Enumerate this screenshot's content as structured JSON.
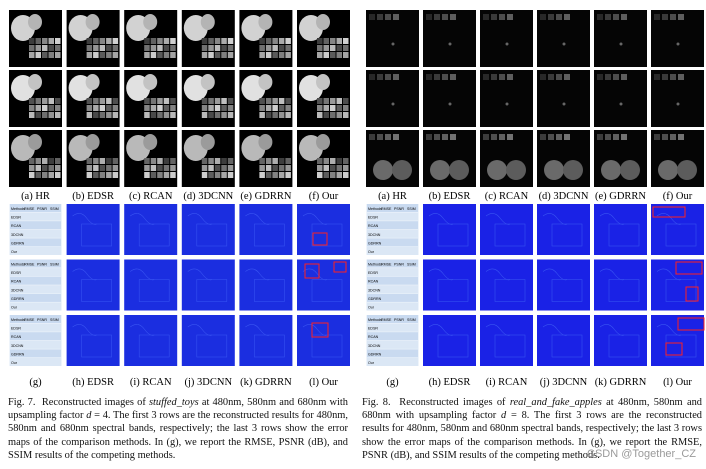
{
  "figures": [
    {
      "top_labels": [
        "(a) HR",
        "(b) EDSR",
        "(c) RCAN",
        "(d) 3DCNN",
        "(e) GDRRN",
        "(f) Our"
      ],
      "bottom_labels": [
        "(g)",
        "(h) EDSR",
        "(i) RCAN",
        "(j) 3DCNN",
        "(k) GDRRN",
        "(l) Our"
      ],
      "table": {
        "header": [
          "Methods",
          "RMSE",
          "PSNR",
          "SSIM"
        ],
        "methods": [
          "EDSR",
          "RCAN",
          "3DCNN",
          "GDRRN",
          "Our"
        ]
      },
      "caption": {
        "label": "Fig. 7.",
        "before": "Reconstructed images of",
        "dataset": "stuffed_toys",
        "middle": "at 480nm, 580nm and 680nm with upsampling factor",
        "variable": "d",
        "after": "= 4. The first 3 rows are the reconstructed results for 480nm, 580nm and 680nm spectral bands, respectively; the last 3 rows show the error maps of the comparison methods. In (g), we report the RMSE, PSNR (dB), and SSIM results of the competing methods."
      }
    },
    {
      "top_labels": [
        "(a) HR",
        "(b) EDSR",
        "(c) RCAN",
        "(d) 3DCNN",
        "(e) GDRRN",
        "(f) Our"
      ],
      "bottom_labels": [
        "(g)",
        "(h) EDSR",
        "(i) RCAN",
        "(j) 3DCNN",
        "(k) GDRRN",
        "(l) Our"
      ],
      "table": {
        "header": [
          "Methods",
          "RMSE",
          "PSNR",
          "SSIM"
        ],
        "methods": [
          "EDSR",
          "RCAN",
          "3DCNN",
          "GDRRN",
          "Our"
        ]
      },
      "caption": {
        "label": "Fig. 8.",
        "before": "Reconstructed images of",
        "dataset": "real_and_fake_apples",
        "middle": "at 480nm, 580nm and 680nm with upsampling factor",
        "variable": "d",
        "after": "= 8. The first 3 rows are the reconstructed results for 480nm, 580nm and 680nm spectral bands, respectively; the last 3 rows show the error maps of the comparison methods. In (g), we report the RMSE, PSNR (dB), and SSIM results of the competing methods."
      }
    }
  ],
  "watermark": "CSDN @Together_CZ"
}
